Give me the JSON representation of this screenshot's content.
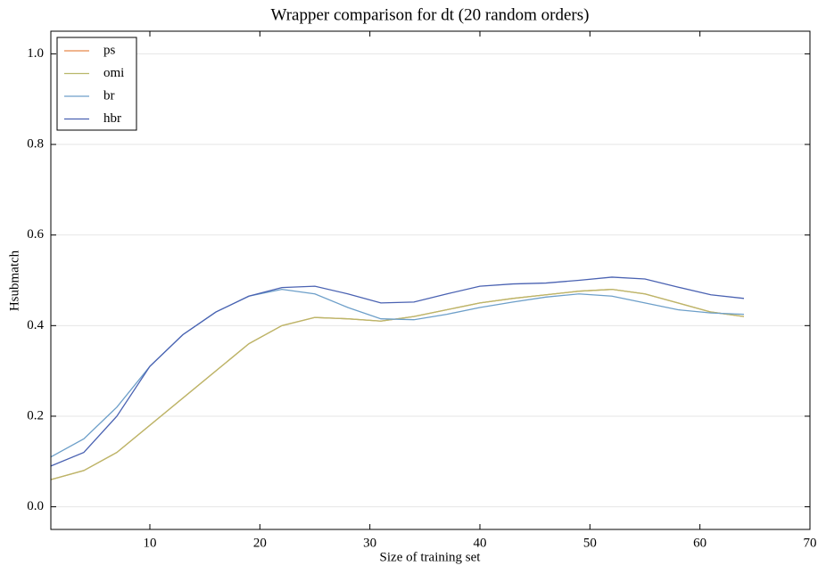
{
  "chart_data": {
    "type": "line",
    "title": "Wrapper comparison for dt (20 random orders)",
    "xlabel": "Size of training set",
    "ylabel": "Hsubmatch",
    "x": [
      1,
      4,
      7,
      10,
      13,
      16,
      19,
      22,
      25,
      28,
      31,
      34,
      37,
      40,
      43,
      46,
      49,
      52,
      55,
      58,
      61,
      64
    ],
    "series": [
      {
        "name": "ps",
        "color": "#e8894a",
        "values": [
          0.06,
          0.08,
          0.12,
          0.18,
          0.24,
          0.3,
          0.36,
          0.4,
          0.418,
          0.415,
          0.41,
          0.42,
          0.435,
          0.45,
          0.46,
          0.468,
          0.476,
          0.48,
          0.47,
          0.45,
          0.43,
          0.42
        ]
      },
      {
        "name": "omi",
        "color": "#b9b86a",
        "values": [
          0.06,
          0.08,
          0.12,
          0.18,
          0.24,
          0.3,
          0.36,
          0.4,
          0.418,
          0.415,
          0.41,
          0.42,
          0.435,
          0.45,
          0.46,
          0.468,
          0.476,
          0.48,
          0.47,
          0.45,
          0.43,
          0.42
        ]
      },
      {
        "name": "br",
        "color": "#6d9fc9",
        "values": [
          0.11,
          0.15,
          0.22,
          0.31,
          0.38,
          0.43,
          0.465,
          0.48,
          0.47,
          0.44,
          0.415,
          0.413,
          0.425,
          0.44,
          0.452,
          0.463,
          0.47,
          0.465,
          0.45,
          0.435,
          0.428,
          0.425
        ]
      },
      {
        "name": "hbr",
        "color": "#4a62b2",
        "values": [
          0.09,
          0.12,
          0.2,
          0.31,
          0.38,
          0.43,
          0.465,
          0.484,
          0.487,
          0.47,
          0.45,
          0.452,
          0.47,
          0.487,
          0.492,
          0.494,
          0.5,
          0.507,
          0.503,
          0.485,
          0.468,
          0.46
        ]
      }
    ],
    "xlim": [
      1,
      70
    ],
    "xticks": [
      10,
      20,
      30,
      40,
      50,
      60,
      70
    ],
    "ylim": [
      -0.05,
      1.05
    ],
    "yticks": [
      {
        "value": 0,
        "label": "0.0"
      },
      0.2,
      0.4,
      0.6,
      0.8,
      {
        "value": 1,
        "label": "1.0"
      }
    ],
    "grid": true,
    "legend": "upper-left"
  }
}
